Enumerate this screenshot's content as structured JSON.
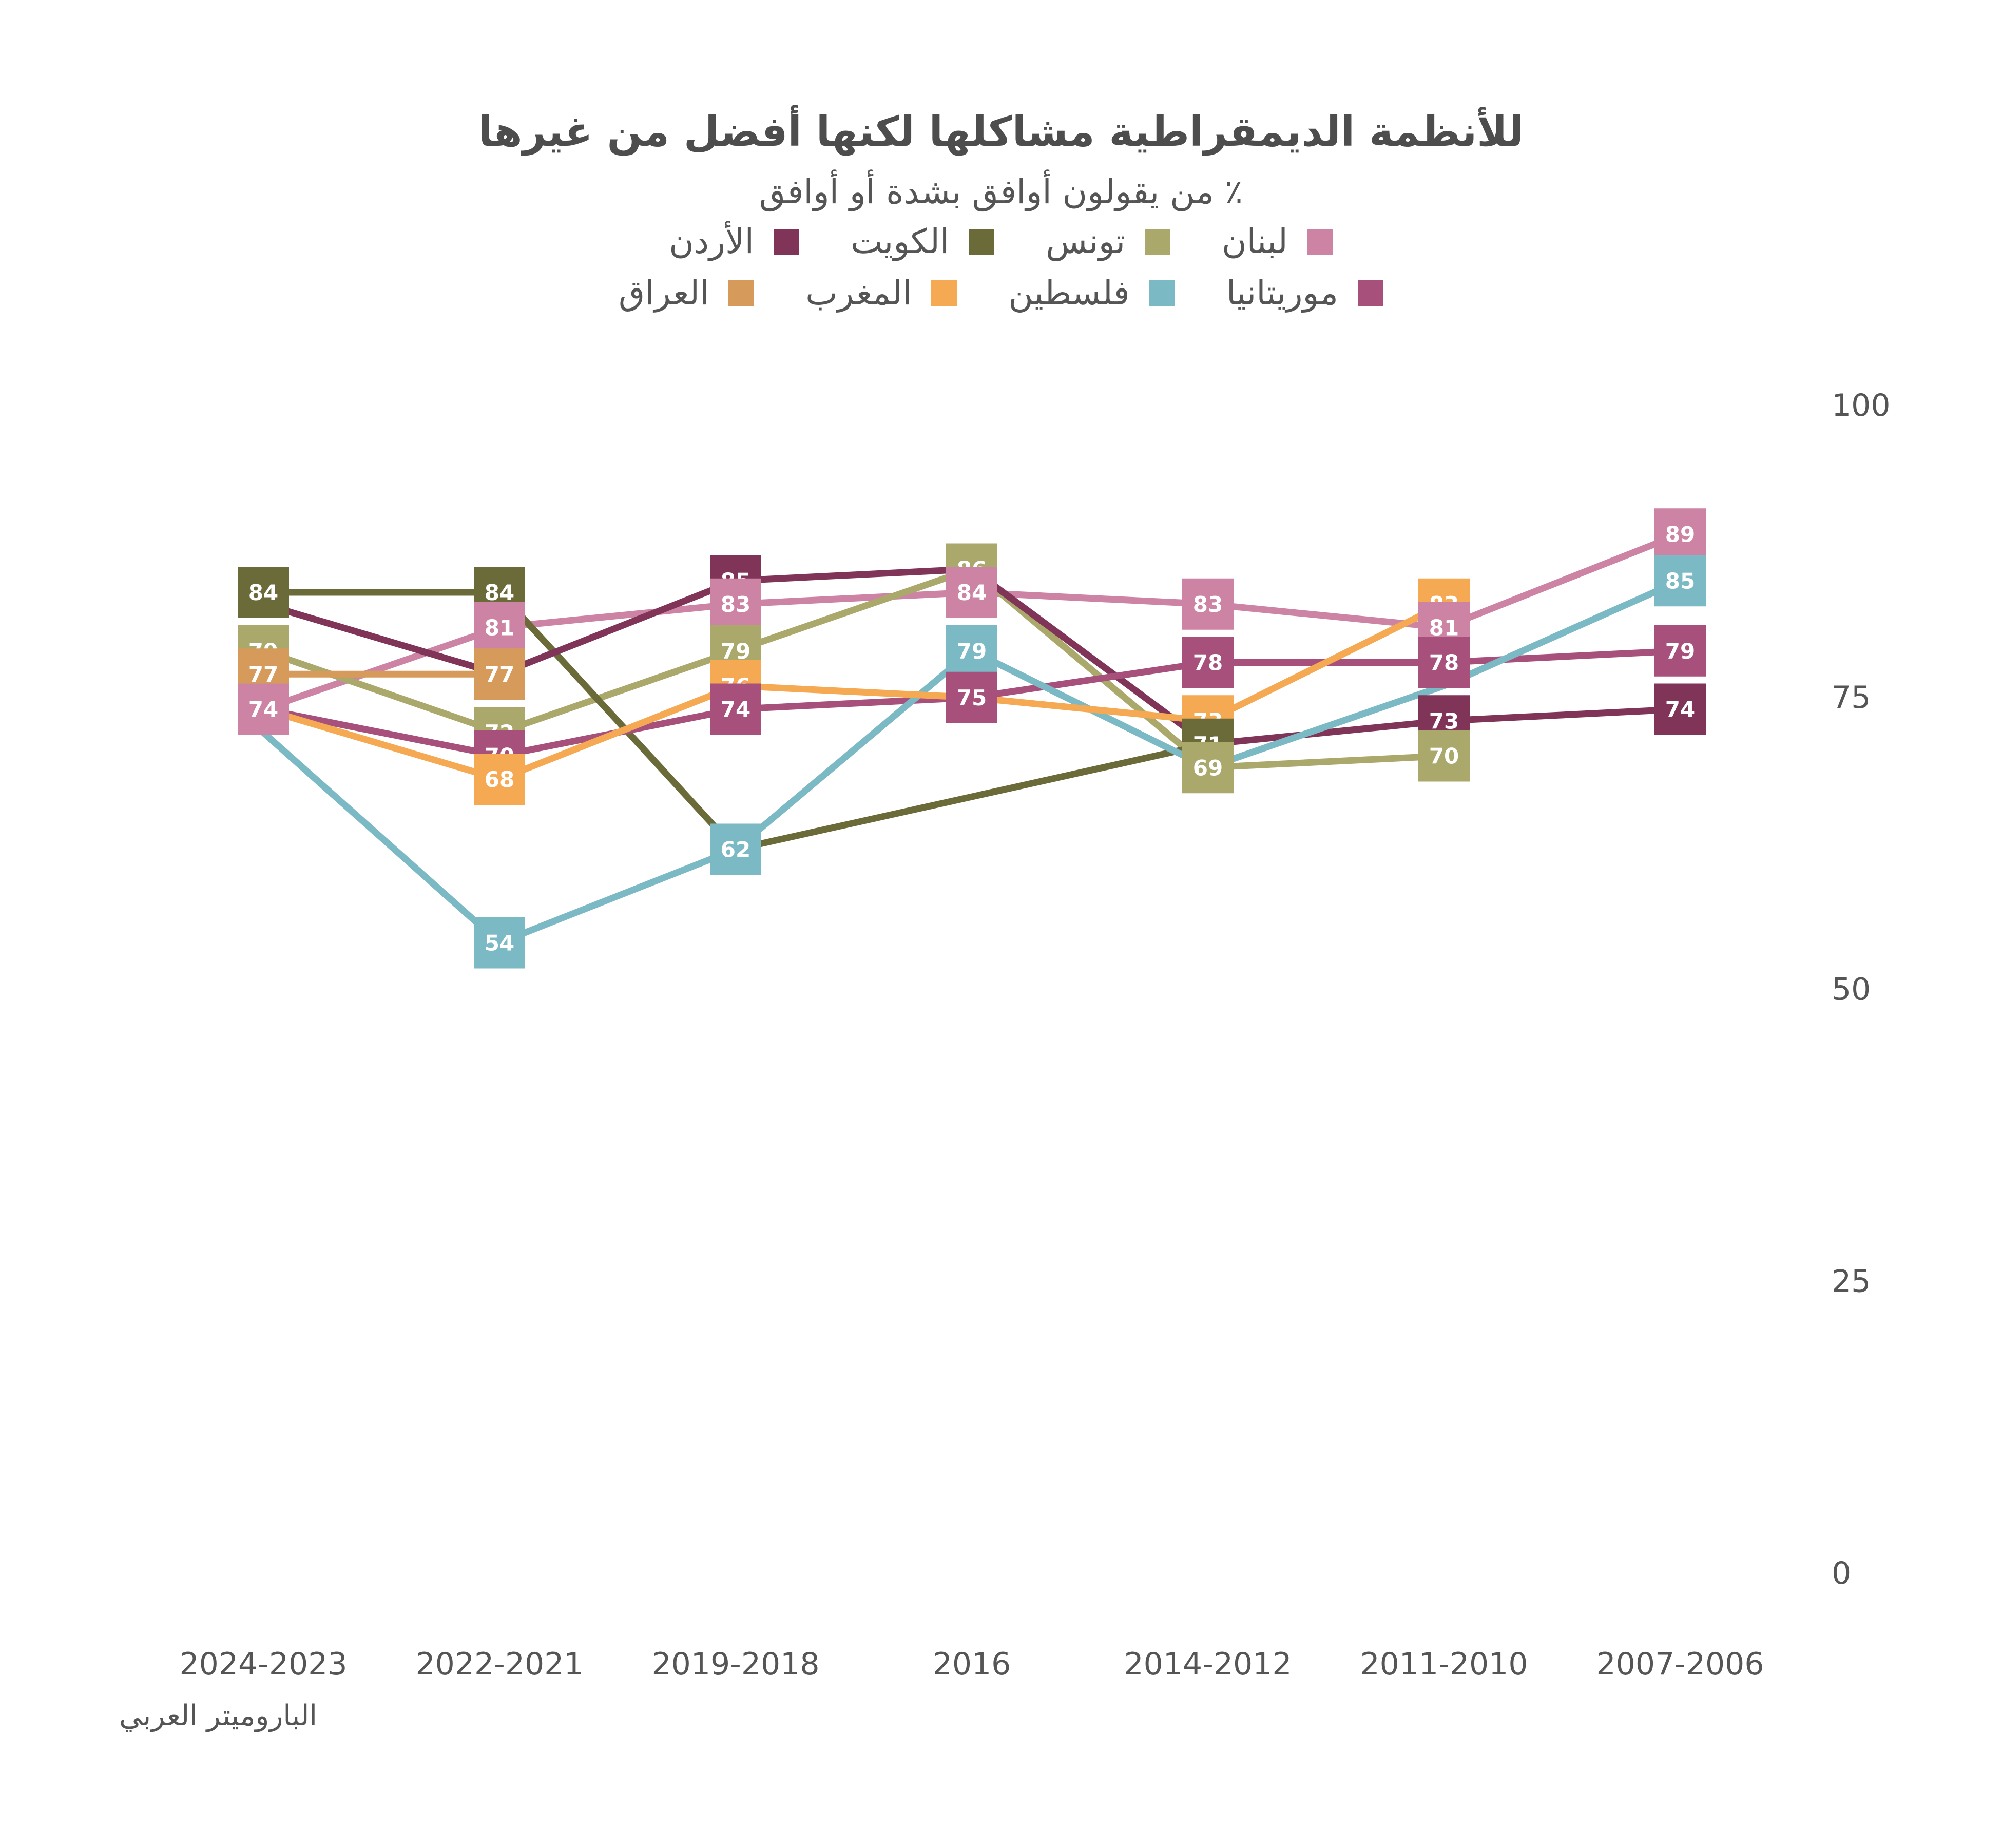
{
  "chart_data": {
    "type": "line",
    "title": "للأنظمة الديمقراطية مشاكلها لكنها أفضل من غيرها",
    "subtitle": "٪ من يقولون أوافق بشدة أو أوافق",
    "categories": [
      "2007-2006",
      "2011-2010",
      "2014-2012",
      "2016",
      "2019-2018",
      "2022-2021",
      "2024-2023"
    ],
    "ylim": [
      0,
      100
    ],
    "yticks": [
      0,
      25,
      50,
      75,
      100
    ],
    "grid": false,
    "axis_side": "right",
    "legend_position": "top",
    "series": [
      {
        "name": "لبنان",
        "color": "#cd84a4",
        "values": [
          89,
          81,
          83,
          84,
          83,
          81,
          74
        ]
      },
      {
        "name": "تونس",
        "color": "#aaa86a",
        "values": [
          null,
          70,
          69,
          86,
          79,
          72,
          79
        ]
      },
      {
        "name": "الكويت",
        "color": "#6b6b3a",
        "values": [
          null,
          null,
          71,
          null,
          62,
          84,
          84
        ]
      },
      {
        "name": "الأردن",
        "color": "#7f3458",
        "values": [
          74,
          73,
          71,
          86,
          85,
          77,
          83
        ]
      },
      {
        "name": "موريتانيا",
        "color": "#a8507c",
        "values": [
          79,
          78,
          78,
          75,
          74,
          70,
          74
        ]
      },
      {
        "name": "فلسطين",
        "color": "#7bb9c5",
        "values": [
          85,
          76,
          69,
          79,
          62,
          54,
          72
        ]
      },
      {
        "name": "المغرب",
        "color": "#f6a953",
        "values": [
          null,
          83,
          73,
          75,
          76,
          68,
          74
        ]
      },
      {
        "name": "العراق",
        "color": "#d69b5a",
        "values": [
          null,
          null,
          null,
          null,
          null,
          77,
          77
        ]
      }
    ],
    "data_labels": [
      {
        "series": "الكويت",
        "x": "2024-2023",
        "y": 84
      },
      {
        "series": "تونس",
        "x": "2024-2023",
        "y": 79
      },
      {
        "series": "العراق",
        "x": "2024-2023",
        "y": 77
      },
      {
        "series": "لبنان",
        "x": "2024-2023",
        "y": 74
      },
      {
        "series": "الكويت",
        "x": "2022-2021",
        "y": 84
      },
      {
        "series": "لبنان",
        "x": "2022-2021",
        "y": 81
      },
      {
        "series": "العراق",
        "x": "2022-2021",
        "y": 77
      },
      {
        "series": "تونس",
        "x": "2022-2021",
        "y": 72
      },
      {
        "series": "موريتانيا",
        "x": "2022-2021",
        "y": 70
      },
      {
        "series": "المغرب",
        "x": "2022-2021",
        "y": 68
      },
      {
        "series": "فلسطين",
        "x": "2022-2021",
        "y": 54
      },
      {
        "series": "الأردن",
        "x": "2019-2018",
        "y": 85
      },
      {
        "series": "لبنان",
        "x": "2019-2018",
        "y": 83
      },
      {
        "series": "تونس",
        "x": "2019-2018",
        "y": 79
      },
      {
        "series": "المغرب",
        "x": "2019-2018",
        "y": 76
      },
      {
        "series": "موريتانيا",
        "x": "2019-2018",
        "y": 74
      },
      {
        "series": "فلسطين",
        "x": "2019-2018",
        "y": 62
      },
      {
        "series": "تونس",
        "x": "2016",
        "y": 86
      },
      {
        "series": "لبنان",
        "x": "2016",
        "y": 84
      },
      {
        "series": "فلسطين",
        "x": "2016",
        "y": 79
      },
      {
        "series": "موريتانيا",
        "x": "2016",
        "y": 75
      },
      {
        "series": "لبنان",
        "x": "2014-2012",
        "y": 83
      },
      {
        "series": "موريتانيا",
        "x": "2014-2012",
        "y": 78
      },
      {
        "series": "المغرب",
        "x": "2014-2012",
        "y": 73
      },
      {
        "series": "الكويت",
        "x": "2014-2012",
        "y": 71
      },
      {
        "series": "تونس",
        "x": "2014-2012",
        "y": 69
      },
      {
        "series": "المغرب",
        "x": "2011-2010",
        "y": 83
      },
      {
        "series": "لبنان",
        "x": "2011-2010",
        "y": 81
      },
      {
        "series": "موريتانيا",
        "x": "2011-2010",
        "y": 78
      },
      {
        "series": "الأردن",
        "x": "2011-2010",
        "y": 73
      },
      {
        "series": "تونس",
        "x": "2011-2010",
        "y": 70
      },
      {
        "series": "لبنان",
        "x": "2007-2006",
        "y": 89
      },
      {
        "series": "فلسطين",
        "x": "2007-2006",
        "y": 85
      },
      {
        "series": "موريتانيا",
        "x": "2007-2006",
        "y": 79
      },
      {
        "series": "الأردن",
        "x": "2007-2006",
        "y": 74
      }
    ]
  },
  "source": "الباروميتر العربي"
}
